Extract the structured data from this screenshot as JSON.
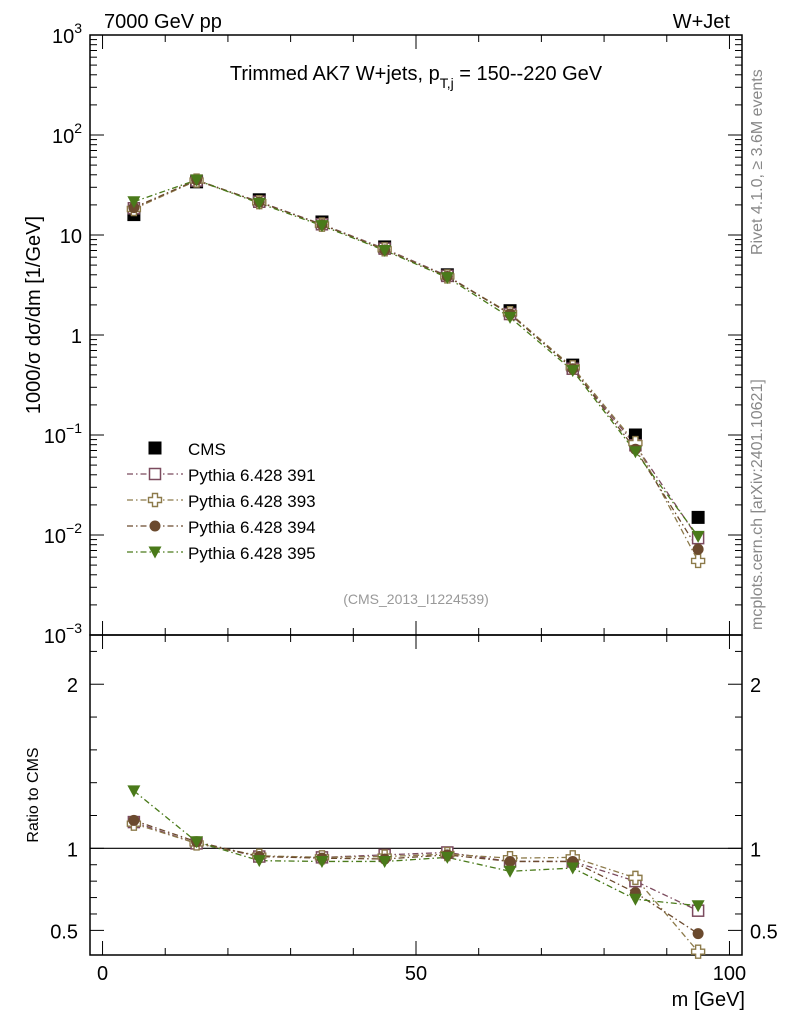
{
  "header": {
    "left": "7000 GeV pp",
    "right": "W+Jet"
  },
  "side_text": {
    "top": "Rivet 4.1.0, ≥ 3.6M events",
    "bottom": "mcplots.cern.ch [arXiv:2401.10621]"
  },
  "chart_data": [
    {
      "type": "scatter",
      "panel": "main",
      "title": "Trimmed AK7 W+jets, p_T,j = 150--220 GeV",
      "title_parts": {
        "prefix": "Trimmed AK7 W+jets, p",
        "sub": "T,j",
        "suffix": " = 150--220 GeV"
      },
      "watermark": "(CMS_2013_I1224539)",
      "ylabel": "1000/σ  dσ/dm [1/GeV]",
      "yscale": "log",
      "ylim": [
        0.001,
        1000
      ],
      "yticks": [
        {
          "value": 1000,
          "base": "10",
          "exp": "3"
        },
        {
          "value": 100,
          "base": "10",
          "exp": "2"
        },
        {
          "value": 10,
          "base": "10",
          "exp": ""
        },
        {
          "value": 1,
          "base": "1",
          "exp": ""
        },
        {
          "value": 0.1,
          "base": "10",
          "exp": "−1"
        },
        {
          "value": 0.01,
          "base": "10",
          "exp": "−2"
        },
        {
          "value": 0.001,
          "base": "10",
          "exp": "−3"
        }
      ],
      "xlim": [
        -2,
        102
      ],
      "x": [
        5,
        15,
        25,
        35,
        45,
        55,
        65,
        75,
        85,
        95
      ],
      "legend_position": "lower-left",
      "series": [
        {
          "name": "CMS",
          "marker": "square-filled",
          "color": "#000000",
          "values": [
            16,
            34,
            22.5,
            13.5,
            7.6,
            4.0,
            1.75,
            0.5,
            0.1,
            0.015
          ]
        },
        {
          "name": "Pythia 6.428 391",
          "marker": "square-open",
          "color": "#7b4b5e",
          "values": [
            18.5,
            35,
            21.5,
            12.8,
            7.3,
            3.9,
            1.62,
            0.46,
            0.079,
            0.0093
          ]
        },
        {
          "name": "Pythia 6.428 393",
          "marker": "cross-open",
          "color": "#8c7a4a",
          "values": [
            18.2,
            35,
            21.3,
            12.7,
            7.2,
            3.85,
            1.65,
            0.475,
            0.083,
            0.0055
          ]
        },
        {
          "name": "Pythia 6.428 394",
          "marker": "circle-filled",
          "color": "#6b4a2e",
          "values": [
            18.8,
            35.5,
            21.3,
            12.7,
            7.1,
            3.85,
            1.62,
            0.46,
            0.072,
            0.0072
          ]
        },
        {
          "name": "Pythia 6.428 395",
          "marker": "triangle-down-filled",
          "color": "#4a7a1a",
          "values": [
            21.5,
            35.5,
            20.8,
            12.4,
            7.0,
            3.75,
            1.5,
            0.44,
            0.068,
            0.0097
          ]
        }
      ]
    },
    {
      "type": "scatter",
      "panel": "ratio",
      "ylabel": "Ratio to CMS",
      "xlabel": "m [GeV]",
      "ylim": [
        0.35,
        2.3
      ],
      "yticks": [
        0.5,
        1,
        2
      ],
      "ytick_labels": [
        "0.5",
        "1",
        "2"
      ],
      "reference_line": 1,
      "xlim": [
        -2,
        102
      ],
      "xticks": [
        0,
        50,
        100
      ],
      "xtick_labels": [
        "0",
        "50",
        "100"
      ],
      "x": [
        5,
        15,
        25,
        35,
        45,
        55,
        65,
        75,
        85,
        95
      ],
      "series": [
        {
          "name": "Pythia 6.428 391",
          "values": [
            1.16,
            1.03,
            0.95,
            0.945,
            0.96,
            0.975,
            0.92,
            0.92,
            0.8,
            0.62
          ]
        },
        {
          "name": "Pythia 6.428 393",
          "values": [
            1.15,
            1.03,
            0.955,
            0.945,
            0.95,
            0.965,
            0.94,
            0.945,
            0.82,
            0.37
          ]
        },
        {
          "name": "Pythia 6.428 394",
          "values": [
            1.17,
            1.04,
            0.95,
            0.94,
            0.935,
            0.96,
            0.92,
            0.92,
            0.73,
            0.48
          ]
        },
        {
          "name": "Pythia 6.428 395",
          "values": [
            1.35,
            1.04,
            0.925,
            0.92,
            0.92,
            0.945,
            0.86,
            0.88,
            0.69,
            0.65
          ]
        }
      ]
    }
  ]
}
